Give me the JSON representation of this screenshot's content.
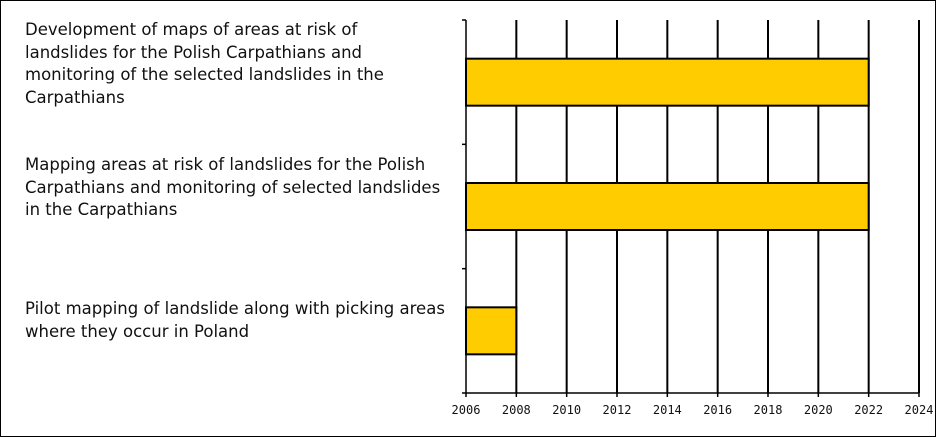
{
  "chart_data": {
    "type": "bar",
    "orientation": "horizontal",
    "title": "",
    "xlabel": "",
    "ylabel": "",
    "xlim": [
      2006,
      2024
    ],
    "xticks": [
      2006,
      2008,
      2010,
      2012,
      2014,
      2016,
      2018,
      2020,
      2022,
      2024
    ],
    "grid": "vertical",
    "legend": "none",
    "bar_color": "#ffcc00",
    "categories": [
      "Development of maps of areas at risk of landslides for the Polish Carpathians and monitoring of the selected landslides in the Carpathians",
      "Mapping areas at risk of landslides for the Polish Carpathians and monitoring of selected landslides in the Carpathians",
      "Pilot mapping of landslide along with picking areas where they occur in Poland"
    ],
    "bars": [
      {
        "start": 2006,
        "end": 2022
      },
      {
        "start": 2006,
        "end": 2022
      },
      {
        "start": 2006,
        "end": 2008
      }
    ]
  }
}
